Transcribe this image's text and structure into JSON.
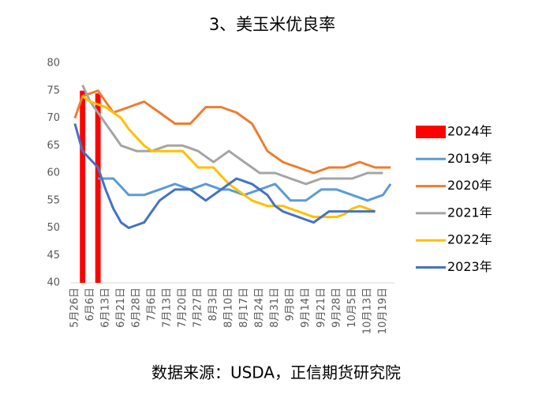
{
  "chart_data": {
    "type": "line",
    "title": "3、美玉米优良率",
    "source": "数据来源：USDA，正信期货研究院",
    "categories": [
      "5月26日",
      null,
      "6月6日",
      null,
      "6月13日",
      null,
      "6月21日",
      null,
      "6月28日",
      null,
      "7月6日",
      null,
      "7月13日",
      null,
      "7月20日",
      null,
      "7月27日",
      null,
      "8月3日",
      null,
      "8月10日",
      null,
      "8月17日",
      null,
      "8月24日",
      null,
      "8月31日",
      null,
      "9月8日",
      null,
      "9月14日",
      null,
      "9月21日",
      null,
      "9月28日",
      null,
      "10月5日",
      null,
      "10月13日",
      null,
      "10月19日",
      null
    ],
    "ylim": [
      40,
      80
    ],
    "yticks": [
      40,
      45,
      50,
      55,
      60,
      65,
      70,
      75,
      80
    ],
    "grid": false,
    "series": [
      {
        "name": "2024年",
        "type": "bar",
        "color": "#ff0000",
        "values": [
          null,
          75,
          null,
          74.5,
          null,
          null,
          null,
          null,
          null,
          null,
          null,
          null,
          null,
          null,
          null,
          null,
          null,
          null,
          null,
          null,
          null,
          null,
          null,
          null,
          null,
          null,
          null,
          null,
          null,
          null,
          null,
          null,
          null,
          null,
          null,
          null,
          null,
          null,
          null,
          null,
          null,
          null
        ]
      },
      {
        "name": "2019年",
        "type": "line",
        "color": "#5b9bd5",
        "values": [
          null,
          null,
          null,
          59,
          59,
          59,
          57.5,
          56,
          56,
          56,
          56.5,
          57,
          57.5,
          58,
          57.5,
          57,
          57.5,
          58,
          57.5,
          57,
          57,
          56.5,
          56,
          56.5,
          57,
          57.5,
          58,
          56.5,
          55,
          55,
          55,
          56,
          57,
          57,
          57,
          56.5,
          56,
          55.5,
          55,
          55.5,
          56,
          58
        ]
      },
      {
        "name": "2020年",
        "type": "line",
        "color": "#ed7d31",
        "values": [
          70,
          74,
          74.5,
          75,
          73,
          71,
          71.5,
          72,
          72.5,
          73,
          72,
          71,
          70,
          69,
          69,
          69,
          70.5,
          72,
          72,
          72,
          71.5,
          71,
          70,
          69,
          66.5,
          64,
          63,
          62,
          61.5,
          61,
          60.5,
          60,
          60.5,
          61,
          61,
          61,
          61.5,
          62,
          61.5,
          61,
          61,
          61
        ]
      },
      {
        "name": "2021年",
        "type": "line",
        "color": "#a5a5a5",
        "values": [
          null,
          76,
          73,
          71,
          69,
          67,
          65,
          64.5,
          64,
          64,
          64,
          64.5,
          65,
          65,
          65,
          64.5,
          64,
          63,
          62,
          63,
          64,
          63,
          62,
          61,
          60,
          60,
          60,
          59.5,
          59,
          58.5,
          58,
          58.5,
          59,
          59,
          59,
          59,
          59,
          59.5,
          60,
          60,
          60,
          null
        ]
      },
      {
        "name": "2022年",
        "type": "line",
        "color": "#ffc000",
        "values": [
          null,
          74,
          73,
          72.5,
          72,
          71,
          70,
          68,
          66.5,
          65,
          64,
          64,
          64,
          64,
          64,
          62.5,
          61,
          61,
          61,
          59.5,
          58,
          57,
          56,
          55,
          54.5,
          54,
          54,
          54,
          53.5,
          53,
          52.5,
          52,
          52,
          52,
          52,
          52.5,
          53.5,
          54,
          53.5,
          53,
          null,
          null
        ]
      },
      {
        "name": "2023年",
        "type": "line",
        "color": "#4472c4",
        "values": [
          69,
          64,
          62.5,
          61,
          57,
          53.5,
          51,
          50,
          50.5,
          51,
          53,
          55,
          56,
          57,
          57,
          57,
          56,
          55,
          56,
          57,
          58,
          59,
          58.5,
          58,
          57,
          56,
          54,
          53,
          52.5,
          52,
          51.5,
          51,
          52,
          53,
          53,
          53,
          53,
          53,
          53,
          53,
          null,
          null
        ]
      }
    ]
  }
}
